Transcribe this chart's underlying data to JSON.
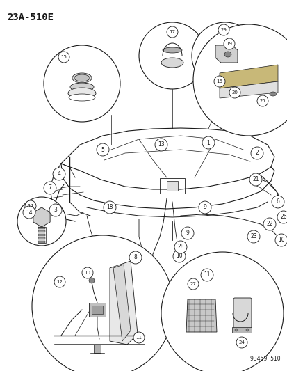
{
  "title": "23A-510E",
  "catalog_number": "93469 510",
  "bg_color": "#ffffff",
  "fig_width": 4.14,
  "fig_height": 5.33,
  "dpi": 100
}
